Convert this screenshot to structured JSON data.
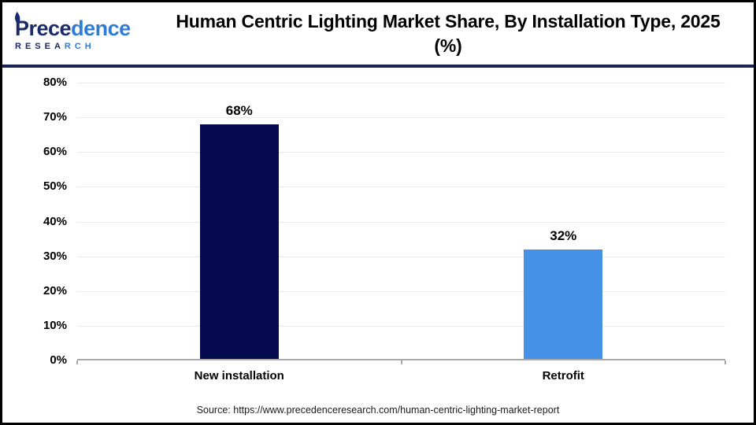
{
  "logo": {
    "name_part1": "Prece",
    "name_part2": "dence",
    "sub_part1": "RESEA",
    "sub_part2": "RCH"
  },
  "header": {
    "title": "Human Centric Lighting Market Share, By Installation Type, 2025 (%)"
  },
  "chart_data": {
    "type": "bar",
    "title": "Human Centric Lighting Market Share, By Installation Type, 2025 (%)",
    "categories": [
      "New installation",
      "Retrofit"
    ],
    "values": [
      68,
      32
    ],
    "value_labels": [
      "68%",
      "32%"
    ],
    "bar_colors": [
      "#040A4D",
      "#4691E8"
    ],
    "xlabel": "",
    "ylabel": "",
    "ylim": [
      0,
      80
    ],
    "ytick_step": 10,
    "ytick_labels": [
      "0%",
      "10%",
      "20%",
      "30%",
      "40%",
      "50%",
      "60%",
      "70%",
      "80%"
    ],
    "grid": true,
    "legend": false
  },
  "footer": {
    "source": "Source: https://www.precedenceresearch.com/human-centric-lighting-market-report"
  },
  "colors": {
    "bar_navy": "#040A4D",
    "bar_blue": "#4691E8",
    "divider_navy": "#1B2457",
    "gridline": "#E9E9E9",
    "axis_gray": "#A8A8A8",
    "logo_navy": "#1B2A6B",
    "logo_blue": "#2E7CD6"
  }
}
